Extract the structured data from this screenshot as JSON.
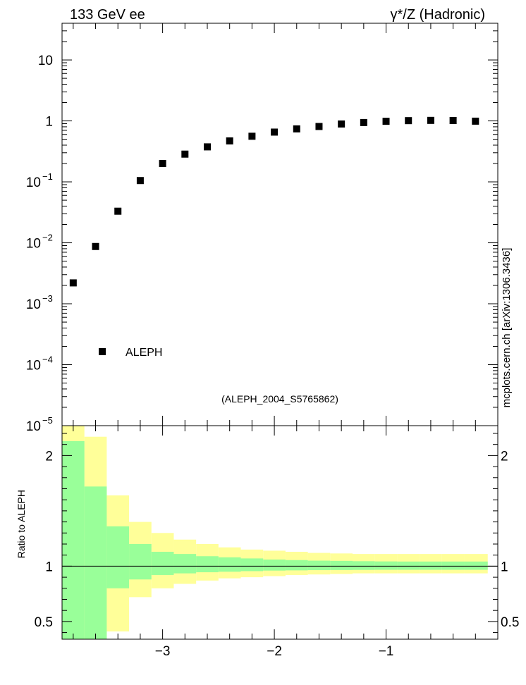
{
  "header": {
    "left": "133 GeV ee",
    "right": "γ*/Z (Hadronic)"
  },
  "side_label": "mcplots.cern.ch [arXiv:1306.3436]",
  "analysis_id": "(ALEPH_2004_S5765862)",
  "chart_data": [
    {
      "type": "scatter",
      "yscale": "log",
      "xlim": [
        -3.9,
        0.0
      ],
      "ylim": [
        1e-05,
        40
      ],
      "y_ticks": [
        {
          "value": 1e-05,
          "base": "10",
          "exp": "−5"
        },
        {
          "value": 0.0001,
          "base": "10",
          "exp": "−4"
        },
        {
          "value": 0.001,
          "base": "10",
          "exp": "−3"
        },
        {
          "value": 0.01,
          "base": "10",
          "exp": "−2"
        },
        {
          "value": 0.1,
          "base": "10",
          "exp": "−1"
        },
        {
          "value": 1,
          "base": "1",
          "exp": ""
        },
        {
          "value": 10,
          "base": "10",
          "exp": ""
        }
      ],
      "legend": [
        {
          "name": "ALEPH",
          "marker": "square",
          "color": "#000000"
        }
      ],
      "legend_position": "bottom-left",
      "series": [
        {
          "name": "ALEPH",
          "x": [
            -3.8,
            -3.6,
            -3.4,
            -3.2,
            -3.0,
            -2.8,
            -2.6,
            -2.4,
            -2.2,
            -2.0,
            -1.8,
            -1.6,
            -1.4,
            -1.2,
            -1.0,
            -0.8,
            -0.6,
            -0.4,
            -0.2
          ],
          "y": [
            0.0022,
            0.0087,
            0.033,
            0.105,
            0.2,
            0.285,
            0.375,
            0.47,
            0.56,
            0.655,
            0.74,
            0.81,
            0.89,
            0.94,
            0.985,
            1.01,
            1.02,
            1.015,
            0.99
          ]
        }
      ]
    },
    {
      "type": "area",
      "ylabel": "Ratio to ALEPH",
      "xlim": [
        -3.9,
        0.0
      ],
      "ylim": [
        0.34,
        2.27
      ],
      "x_ticks": [
        {
          "value": -3,
          "label": "−3"
        },
        {
          "value": -2,
          "label": "−2"
        },
        {
          "value": -1,
          "label": "−1"
        }
      ],
      "y_ticks": [
        {
          "value": 0.5,
          "label": "0.5"
        },
        {
          "value": 1,
          "label": "1"
        },
        {
          "value": 2,
          "label": "2"
        }
      ],
      "reference_line": 1,
      "bins": [
        -3.9,
        -3.7,
        -3.5,
        -3.3,
        -3.1,
        -2.9,
        -2.7,
        -2.5,
        -2.3,
        -2.1,
        -1.9,
        -1.7,
        -1.5,
        -1.3,
        -1.1,
        -0.9,
        -0.7,
        -0.5,
        -0.3,
        -0.09
      ],
      "bands": [
        {
          "name": "total uncertainty",
          "color": "#ffff99",
          "low": [
            0.3,
            0.3,
            0.41,
            0.72,
            0.8,
            0.84,
            0.87,
            0.89,
            0.9,
            0.91,
            0.92,
            0.925,
            0.93,
            0.935,
            0.935,
            0.935,
            0.935,
            0.935,
            0.935
          ],
          "high": [
            2.27,
            2.17,
            1.64,
            1.4,
            1.3,
            1.24,
            1.2,
            1.17,
            1.15,
            1.14,
            1.13,
            1.12,
            1.115,
            1.11,
            1.11,
            1.11,
            1.11,
            1.11,
            1.11
          ]
        },
        {
          "name": "statistical uncertainty",
          "color": "#99ff99",
          "low": [
            0.3,
            0.3,
            0.8,
            0.88,
            0.92,
            0.935,
            0.945,
            0.95,
            0.955,
            0.96,
            0.962,
            0.964,
            0.965,
            0.966,
            0.967,
            0.967,
            0.967,
            0.967,
            0.967
          ],
          "high": [
            2.13,
            1.72,
            1.36,
            1.2,
            1.13,
            1.11,
            1.09,
            1.08,
            1.07,
            1.06,
            1.055,
            1.05,
            1.048,
            1.045,
            1.043,
            1.042,
            1.042,
            1.042,
            1.042
          ]
        }
      ]
    }
  ]
}
